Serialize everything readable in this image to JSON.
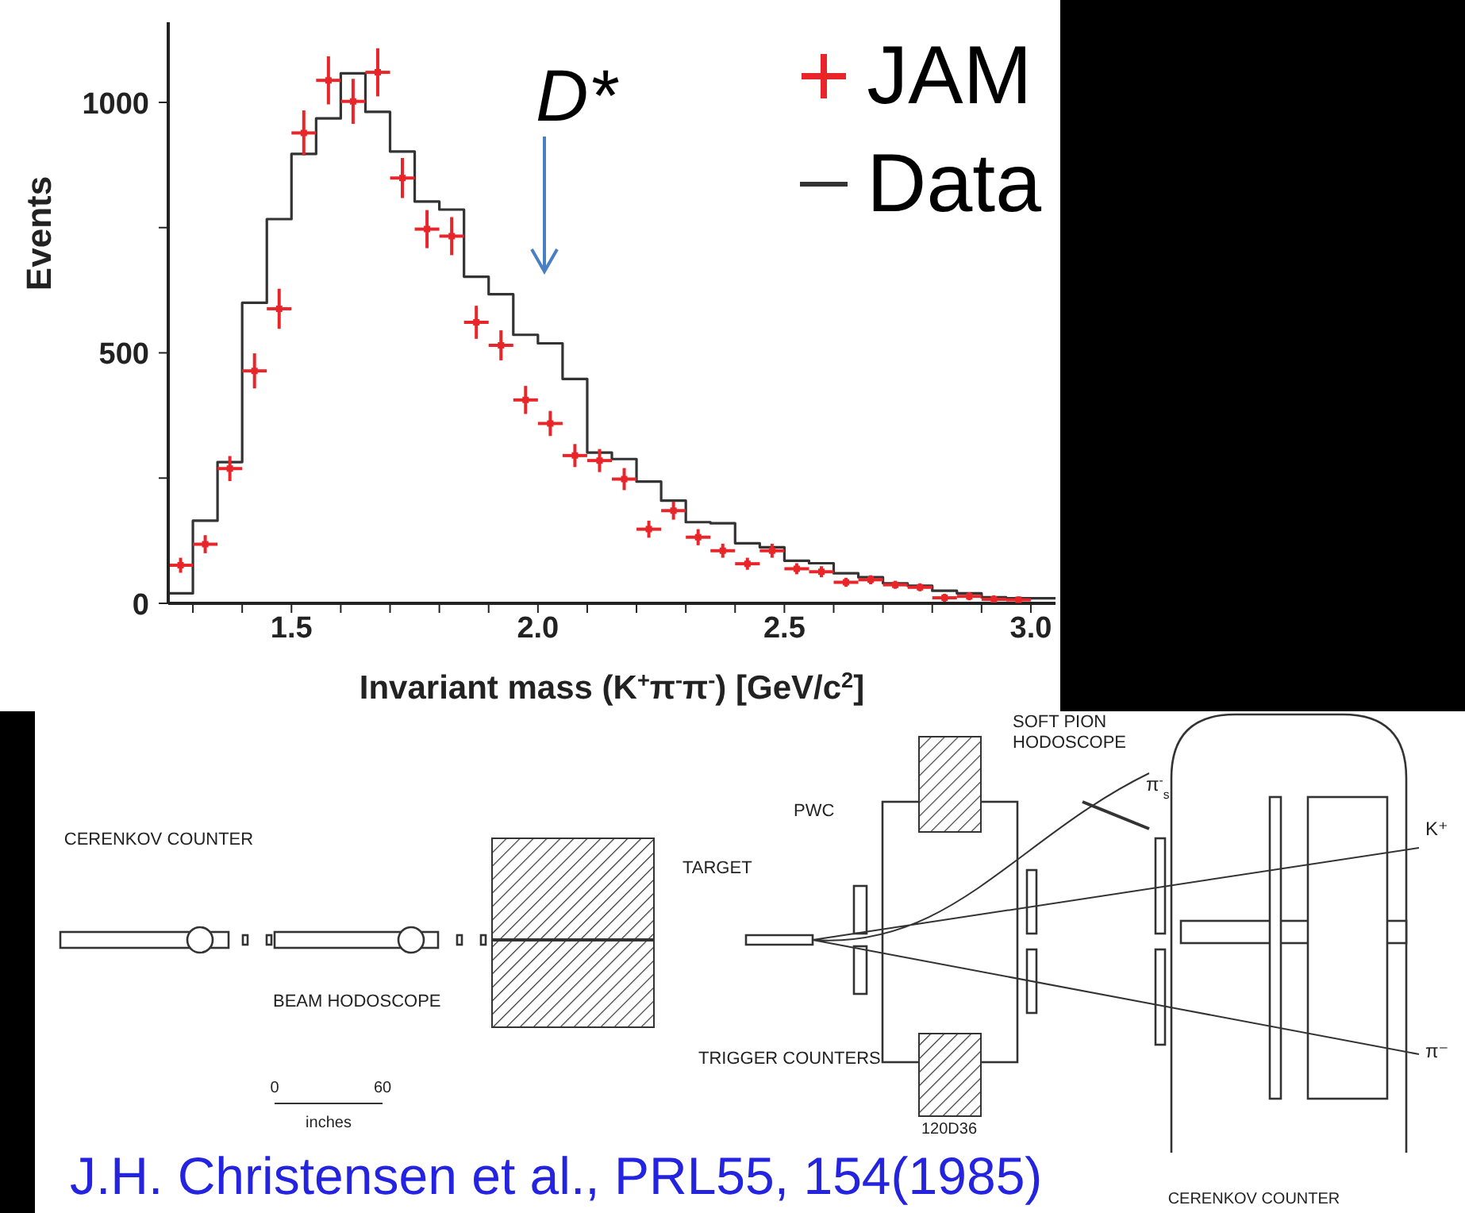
{
  "chart_data": {
    "type": "histogram",
    "xlabel": "Invariant mass (K$^{+}$π$^{-}$π$^{-}$) [GeV/c$^{2}$]",
    "ylabel": "Events",
    "bins": [
      1.25,
      1.3,
      1.35,
      1.4,
      1.45,
      1.5,
      1.55,
      1.6,
      1.65,
      1.7,
      1.75,
      1.8,
      1.85,
      1.9,
      1.95,
      2.0,
      2.05,
      2.1,
      2.15,
      2.2,
      2.25,
      2.3,
      2.35,
      2.4,
      2.45,
      2.5,
      2.55,
      2.6,
      2.65,
      2.7,
      2.75,
      2.8,
      2.85,
      2.9,
      2.95,
      3.0,
      3.05
    ],
    "series": [
      {
        "name": "JAM",
        "type": "scatter",
        "color": "#e8262a",
        "x": [
          1.275,
          1.325,
          1.375,
          1.425,
          1.475,
          1.525,
          1.575,
          1.625,
          1.675,
          1.725,
          1.775,
          1.825,
          1.875,
          1.925,
          1.975,
          2.025,
          2.075,
          2.125,
          2.175,
          2.225,
          2.275,
          2.325,
          2.375,
          2.425,
          2.475,
          2.525,
          2.575,
          2.625,
          2.675,
          2.725,
          2.775,
          2.825,
          2.875,
          2.925,
          2.975
        ],
        "values": [
          76,
          118,
          269,
          464,
          588,
          939,
          1044,
          1002,
          1060,
          849,
          747,
          733,
          561,
          515,
          406,
          359,
          295,
          285,
          248,
          148,
          185,
          132,
          105,
          79,
          105,
          69,
          63,
          42,
          47,
          37,
          32,
          11,
          14,
          8,
          7
        ],
        "errors": [
          15,
          18,
          25,
          35,
          40,
          45,
          48,
          45,
          48,
          40,
          38,
          38,
          33,
          30,
          28,
          25,
          23,
          23,
          22,
          17,
          18,
          16,
          14,
          12,
          14,
          11,
          11,
          9,
          9,
          8,
          8,
          8,
          8,
          8,
          7
        ],
        "xerrors": [
          0.025,
          0.025,
          0.025,
          0.025,
          0.025,
          0.025,
          0.025,
          0.025,
          0.025,
          0.025,
          0.025,
          0.025,
          0.025,
          0.025,
          0.025,
          0.025,
          0.025,
          0.025,
          0.025,
          0.025,
          0.025,
          0.025,
          0.025,
          0.025,
          0.025,
          0.025,
          0.025,
          0.025,
          0.025,
          0.025,
          0.025,
          0.025,
          0.025,
          0.025,
          0.025
        ]
      },
      {
        "name": "Data",
        "type": "histogram",
        "color": "#333333",
        "values": [
          20,
          165,
          282,
          600,
          767,
          897,
          968,
          1058,
          981,
          902,
          802,
          786,
          652,
          617,
          536,
          519,
          448,
          301,
          288,
          243,
          205,
          162,
          160,
          120,
          112,
          85,
          80,
          60,
          52,
          40,
          35,
          25,
          20,
          12,
          10,
          10
        ]
      }
    ],
    "xlim": [
      1.25,
      3.05
    ],
    "xticks": [
      {
        "value": 1.3,
        "label": null
      },
      {
        "value": 1.4,
        "label": null
      },
      1.5,
      {
        "value": 1.6,
        "label": null
      },
      {
        "value": 1.7,
        "label": null
      },
      {
        "value": 1.8,
        "label": null
      },
      {
        "value": 1.9,
        "label": null
      },
      {
        "value": 2.0,
        "label": "2.0"
      },
      {
        "value": 2.1,
        "label": null
      },
      {
        "value": 2.2,
        "label": null
      },
      {
        "value": 2.3,
        "label": null
      },
      {
        "value": 2.4,
        "label": null
      },
      2.5,
      {
        "value": 2.6,
        "label": null
      },
      {
        "value": 2.7,
        "label": null
      },
      {
        "value": 2.8,
        "label": null
      },
      {
        "value": 2.9,
        "label": null
      },
      {
        "value": 3.0,
        "label": "3.0"
      }
    ],
    "ylim": [
      0,
      1160
    ],
    "yticks": [
      0,
      {
        "value": 250,
        "label": null
      },
      500,
      {
        "value": 750,
        "label": null
      },
      1000
    ],
    "marker": "cross",
    "legend": "top right",
    "annotations": [
      "D*",
      "CERENKOV COUNTER",
      "BEAM HODOSCOPE",
      "TARGET",
      "PWC",
      "TRIGGER COUNTERS",
      "SOFT PION HODOSCOPE",
      "K⁺",
      "π⁻",
      "π$^{-}$$_{s}$",
      "0",
      "60",
      "inches",
      "120D36",
      "CERENKOV COUNTER",
      "J.H. Christensen et al., PRL55, 154(1985)"
    ]
  }
}
